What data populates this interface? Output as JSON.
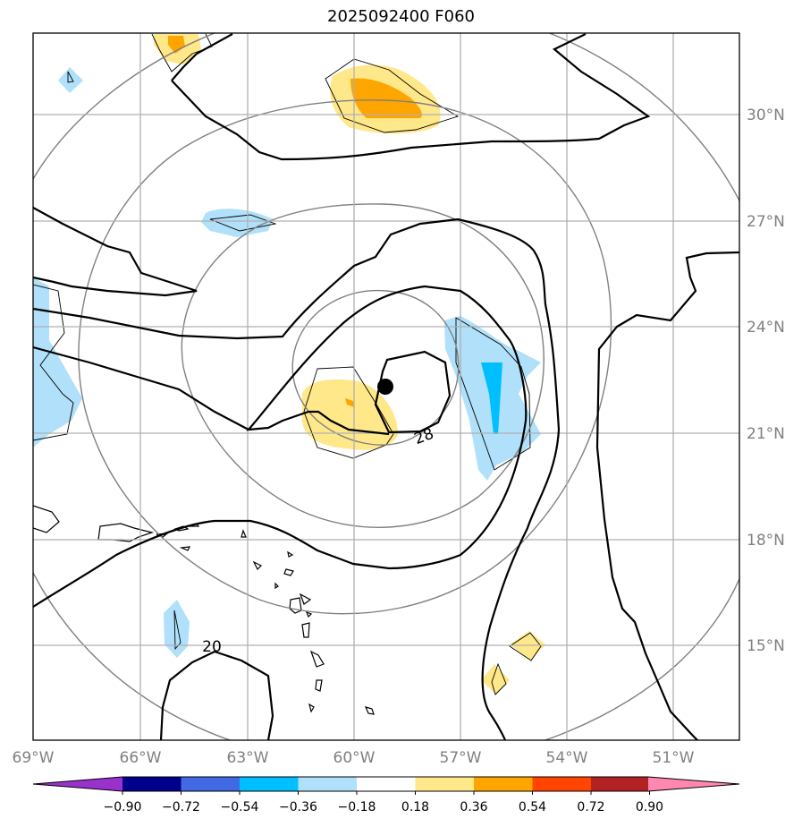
{
  "title": "2025092400 F060",
  "map": {
    "lon_ticks": [
      "69°W",
      "66°W",
      "63°W",
      "60°W",
      "57°W",
      "54°W",
      "51°W"
    ],
    "lat_ticks": [
      "30°N",
      "27°N",
      "24°N",
      "21°N",
      "18°N",
      "15°N"
    ],
    "contour_labels": [
      "28",
      "20"
    ],
    "storm_center": "storm-center-marker",
    "colors": {
      "axis_tick_text": "#808080",
      "grid": "#b0b0b0",
      "range_rings": "#808080",
      "contours": "#000000"
    }
  },
  "colorbar": {
    "tick_labels": [
      "−0.90",
      "−0.72",
      "−0.54",
      "−0.36",
      "−0.18",
      "0.18",
      "0.36",
      "0.54",
      "0.72",
      "0.90"
    ],
    "colors": [
      "#9932cc",
      "#00008b",
      "#4169e1",
      "#00bfff",
      "#b0e0fa",
      "#ffffff",
      "#ffe88a",
      "#ffa500",
      "#ff4500",
      "#b22222",
      "#ff88b0"
    ]
  }
}
